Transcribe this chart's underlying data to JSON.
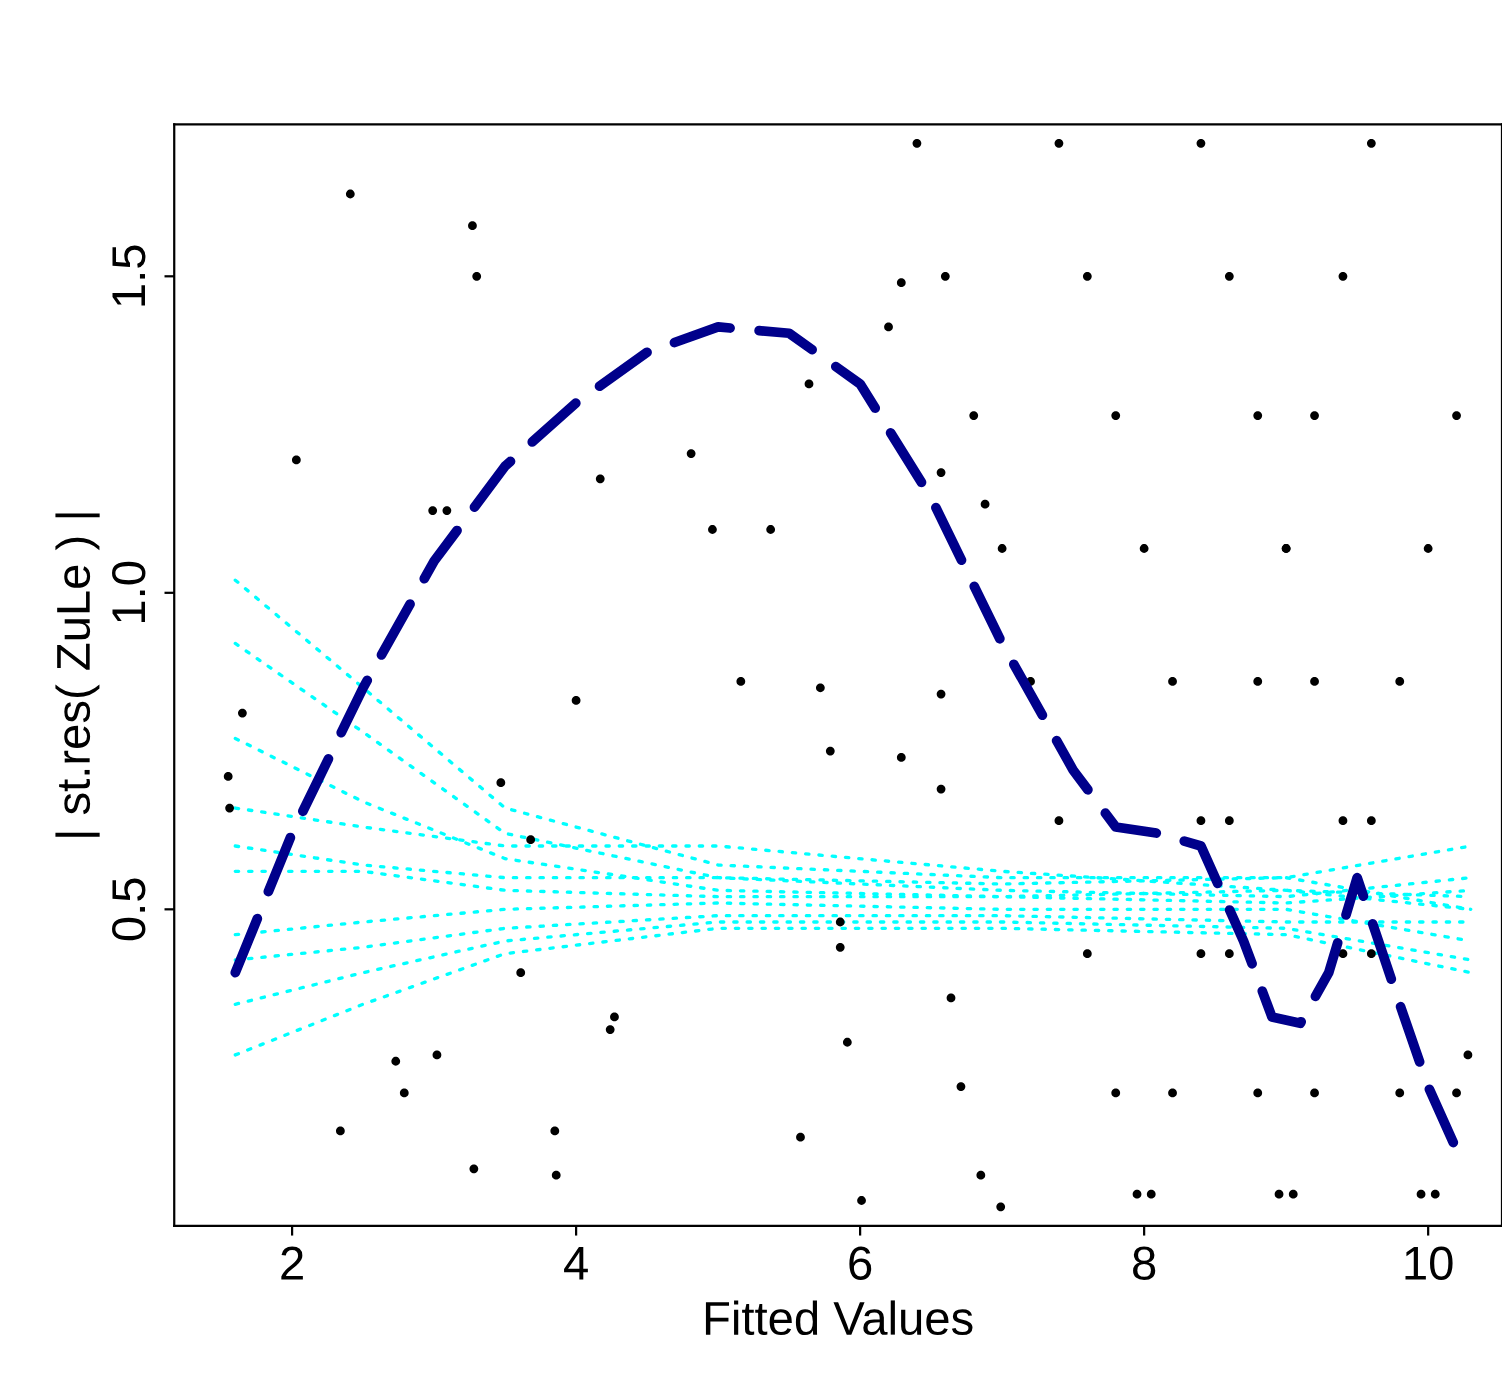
{
  "chart_data": {
    "type": "scatter",
    "xlabel": "Fitted Values",
    "ylabel": "| st.res( ZuLe ) |",
    "xlim": [
      1.17,
      10.52
    ],
    "ylim": [
      0,
      1.74
    ],
    "xticks": [
      2,
      4,
      6,
      8,
      10
    ],
    "yticks": [
      {
        "value": 0.5,
        "label": "0.5"
      },
      {
        "value": 1.0,
        "label": "1.0"
      },
      {
        "value": 1.5,
        "label": "1.5"
      }
    ],
    "grid": false,
    "legend": false,
    "series": [
      {
        "color": "#000000",
        "marker": "circle",
        "x": [
          2.03,
          2.41,
          1.55,
          1.65,
          1.56,
          2.34,
          2.73,
          2.79,
          3.27,
          3.3,
          2.99,
          3.09,
          3.02,
          3.28,
          3.47,
          3.68,
          3.61,
          3.85,
          3.86,
          4.24,
          4.17,
          4.27,
          4.0,
          4.81,
          4.96,
          5.16,
          5.37,
          5.64,
          5.58,
          5.72,
          5.79,
          5.86,
          5.86,
          5.91,
          6.01,
          6.2,
          6.29,
          6.57,
          6.57,
          6.64,
          6.71,
          6.85,
          6.99,
          6.88,
          6.57,
          6.29,
          6.4,
          6.6,
          6.8,
          7.0,
          7.2,
          7.4,
          7.6,
          7.8,
          7.95,
          7.4,
          7.6,
          7.8,
          8.0,
          8.2,
          8.4,
          8.6,
          8.8,
          8.95,
          8.4,
          8.6,
          8.8,
          9.0,
          9.2,
          9.4,
          9.6,
          9.8,
          9.95,
          8.05,
          8.2,
          8.4,
          8.6,
          8.8,
          9.0,
          9.2,
          9.4,
          9.6,
          9.05,
          9.2,
          9.4,
          9.6,
          9.8,
          10.0,
          10.2,
          10.05,
          10.2,
          10.28
        ],
        "values": [
          1.21,
          1.63,
          0.71,
          0.81,
          0.66,
          0.15,
          0.26,
          0.21,
          1.58,
          1.5,
          1.13,
          1.13,
          0.27,
          0.09,
          0.7,
          0.61,
          0.4,
          0.15,
          0.08,
          0.31,
          1.18,
          0.33,
          0.83,
          1.22,
          1.1,
          0.86,
          1.1,
          1.33,
          0.14,
          0.85,
          0.75,
          0.48,
          0.44,
          0.29,
          0.04,
          1.42,
          1.49,
          0.84,
          0.69,
          0.36,
          0.22,
          0.08,
          0.03,
          1.14,
          1.19,
          0.74,
          1.71,
          1.5,
          1.28,
          1.07,
          0.86,
          0.64,
          0.43,
          0.21,
          0.05,
          1.71,
          1.5,
          1.28,
          1.07,
          0.86,
          0.64,
          0.43,
          0.21,
          0.05,
          1.71,
          1.5,
          1.28,
          1.07,
          0.86,
          0.64,
          0.43,
          0.21,
          0.05,
          0.05,
          0.21,
          0.43,
          0.64,
          0.86,
          1.07,
          1.28,
          1.5,
          1.71,
          0.05,
          0.21,
          0.43,
          0.64,
          0.86,
          1.07,
          1.28,
          0.05,
          0.21,
          0.27
        ]
      },
      {
        "type": "line",
        "color": "#00ffff",
        "line_style": "dotted",
        "x": [
          1.6,
          2.5,
          3.5,
          5,
          7,
          9,
          10.3
        ],
        "values": [
          1.02,
          0.85,
          0.66,
          0.57,
          0.55,
          0.55,
          0.6
        ]
      },
      {
        "type": "line",
        "color": "#00ffff",
        "line_style": "dotted",
        "x": [
          1.6,
          2.5,
          3.5,
          5,
          7,
          9,
          10.3
        ],
        "values": [
          0.92,
          0.78,
          0.62,
          0.55,
          0.53,
          0.52,
          0.55
        ]
      },
      {
        "type": "line",
        "color": "#00ffff",
        "line_style": "dotted",
        "x": [
          1.6,
          2.5,
          3.5,
          5,
          7,
          9,
          10.3
        ],
        "values": [
          0.77,
          0.67,
          0.58,
          0.53,
          0.52,
          0.53,
          0.5
        ]
      },
      {
        "type": "line",
        "color": "#00ffff",
        "line_style": "dotted",
        "x": [
          1.6,
          2.5,
          3.5,
          5,
          7,
          9,
          10.3
        ],
        "values": [
          0.66,
          0.63,
          0.6,
          0.6,
          0.56,
          0.53,
          0.52
        ]
      },
      {
        "type": "line",
        "color": "#00ffff",
        "line_style": "dotted",
        "x": [
          1.6,
          2.5,
          3.5,
          5,
          7,
          9,
          10.3
        ],
        "values": [
          0.6,
          0.57,
          0.55,
          0.55,
          0.54,
          0.55,
          0.5
        ]
      },
      {
        "type": "line",
        "color": "#00ffff",
        "line_style": "dotted",
        "x": [
          1.6,
          2.5,
          3.5,
          5,
          7,
          9,
          10.3
        ],
        "values": [
          0.56,
          0.56,
          0.53,
          0.52,
          0.52,
          0.51,
          0.53
        ]
      },
      {
        "type": "line",
        "color": "#00ffff",
        "line_style": "dotted",
        "x": [
          1.6,
          2.5,
          3.5,
          5,
          7,
          9,
          10.3
        ],
        "values": [
          0.46,
          0.48,
          0.5,
          0.51,
          0.5,
          0.5,
          0.45
        ]
      },
      {
        "type": "line",
        "color": "#00ffff",
        "line_style": "dotted",
        "x": [
          1.6,
          2.5,
          3.5,
          5,
          7,
          9,
          10.3
        ],
        "values": [
          0.42,
          0.44,
          0.47,
          0.49,
          0.49,
          0.48,
          0.48
        ]
      },
      {
        "type": "line",
        "color": "#00ffff",
        "line_style": "dotted",
        "x": [
          1.6,
          2.5,
          3.5,
          5,
          7,
          9,
          10.3
        ],
        "values": [
          0.35,
          0.4,
          0.45,
          0.48,
          0.48,
          0.47,
          0.42
        ]
      },
      {
        "type": "line",
        "color": "#00ffff",
        "line_style": "dotted",
        "x": [
          1.6,
          2.5,
          3.5,
          5,
          7,
          9,
          10.3
        ],
        "values": [
          0.27,
          0.35,
          0.43,
          0.47,
          0.47,
          0.46,
          0.4
        ]
      },
      {
        "type": "line",
        "color": "#00008b",
        "line_style": "dashed",
        "x": [
          1.6,
          2,
          2.5,
          3,
          3.5,
          4,
          4.5,
          5,
          5.5,
          6,
          6.5,
          7,
          7.5,
          7.8,
          8.1,
          8.4,
          8.7,
          8.9,
          9.1,
          9.3,
          9.5,
          9.8,
          10.0,
          10.2
        ],
        "values": [
          0.4,
          0.62,
          0.85,
          1.05,
          1.2,
          1.3,
          1.38,
          1.42,
          1.41,
          1.33,
          1.15,
          0.92,
          0.72,
          0.63,
          0.62,
          0.6,
          0.45,
          0.33,
          0.32,
          0.4,
          0.55,
          0.35,
          0.22,
          0.12
        ]
      }
    ]
  }
}
